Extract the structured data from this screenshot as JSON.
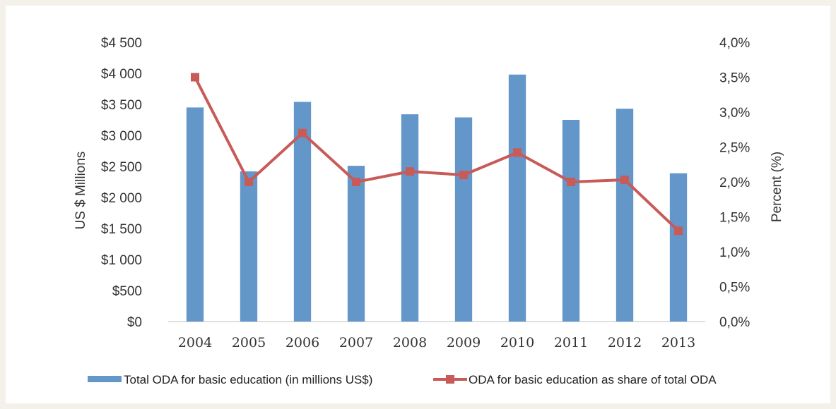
{
  "chart_data": {
    "type": "bar",
    "categories": [
      "2004",
      "2005",
      "2006",
      "2007",
      "2008",
      "2009",
      "2010",
      "2011",
      "2012",
      "2013"
    ],
    "series": [
      {
        "name": "Total ODA for basic education (in millions US$)",
        "kind": "bar",
        "axis": "left",
        "color": "#6497c9",
        "values": [
          3450,
          2420,
          3540,
          2510,
          3340,
          3290,
          3980,
          3250,
          3430,
          2390
        ]
      },
      {
        "name": "ODA for basic education as share of total ODA",
        "kind": "line",
        "axis": "right",
        "color": "#c85b57",
        "values": [
          3.5,
          2.0,
          2.7,
          2.0,
          2.15,
          2.1,
          2.42,
          2.0,
          2.03,
          1.3
        ]
      }
    ],
    "ylabel": "US $ Millions",
    "y2label": "Percent (%)",
    "ylim": [
      0,
      4500
    ],
    "y2lim": [
      0,
      4.0
    ],
    "yticks": [
      "$0",
      "$500",
      "$1 000",
      "$1 500",
      "$2 000",
      "$2 500",
      "$3 000",
      "$3 500",
      "$4 000",
      "$4 500"
    ],
    "y2ticks": [
      "0,0%",
      "0,5%",
      "1,0%",
      "1,5%",
      "2,0%",
      "2,5%",
      "3,0%",
      "3,5%",
      "4,0%"
    ],
    "legend_position": "bottom",
    "grid": false
  }
}
